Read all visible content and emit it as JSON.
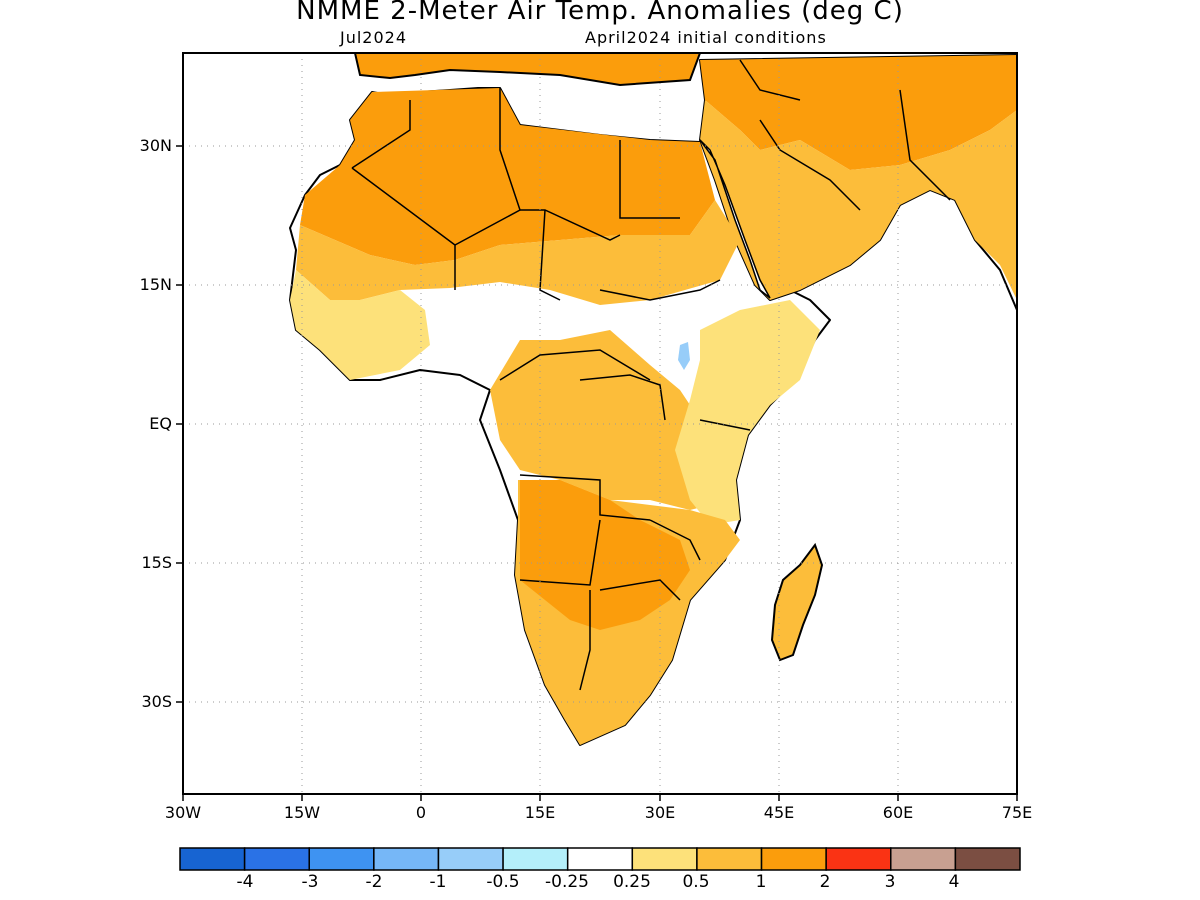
{
  "title": "NMME 2-Meter Air Temp. Anomalies (deg C)",
  "subtitle_left": "Jul2024",
  "subtitle_right": "April2024 initial conditions",
  "lat_ticks": [
    "30N",
    "15N",
    "EQ",
    "15S",
    "30S"
  ],
  "lon_ticks": [
    "30W",
    "15W",
    "0",
    "15E",
    "30E",
    "45E",
    "60E",
    "75E"
  ],
  "colorbar": {
    "colors": [
      "#1764d2",
      "#2a72e6",
      "#3e93f2",
      "#76b7f7",
      "#97cdf9",
      "#b4effa",
      "#ffffff",
      "#fde17a",
      "#fcbd3a",
      "#fb9d0c",
      "#fa3314",
      "#c8a091",
      "#7b4e42"
    ],
    "labels": [
      "-4",
      "-3",
      "-2",
      "-1",
      "-0.5",
      "-0.25",
      "0.25",
      "0.5",
      "1",
      "2",
      "3",
      "4"
    ]
  }
}
